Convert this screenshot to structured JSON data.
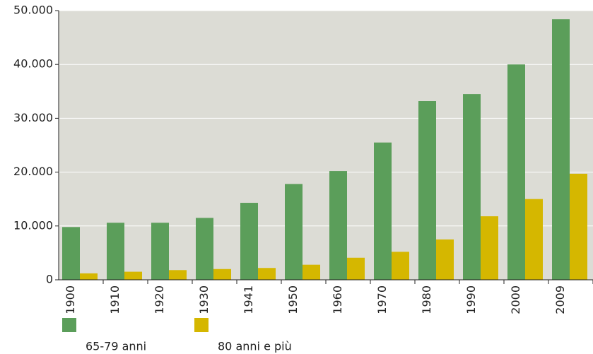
{
  "chart_data": {
    "type": "bar",
    "categories": [
      "1900",
      "1910",
      "1920",
      "1930",
      "1941",
      "1950",
      "1960",
      "1970",
      "1980",
      "1990",
      "2000",
      "2009"
    ],
    "series": [
      {
        "name": "65-79 anni",
        "color": "#5b9e5a",
        "values": [
          9800,
          10600,
          10600,
          11500,
          14300,
          17800,
          20200,
          25500,
          33200,
          34500,
          40000,
          48400
        ]
      },
      {
        "name": "80 anni e più",
        "color": "#d5b700",
        "values": [
          1200,
          1500,
          1800,
          2000,
          2200,
          2800,
          4100,
          5200,
          7500,
          11800,
          15000,
          19700
        ]
      }
    ],
    "ylim": [
      0,
      50000
    ],
    "yticks": [
      0,
      {
        "value": 10000,
        "label": "10.000"
      },
      {
        "value": 20000,
        "label": "20.000"
      },
      {
        "value": 30000,
        "label": "30.000"
      },
      {
        "value": 40000,
        "label": "40.000"
      },
      {
        "value": 50000,
        "label": "50.000"
      }
    ],
    "grid": true
  }
}
